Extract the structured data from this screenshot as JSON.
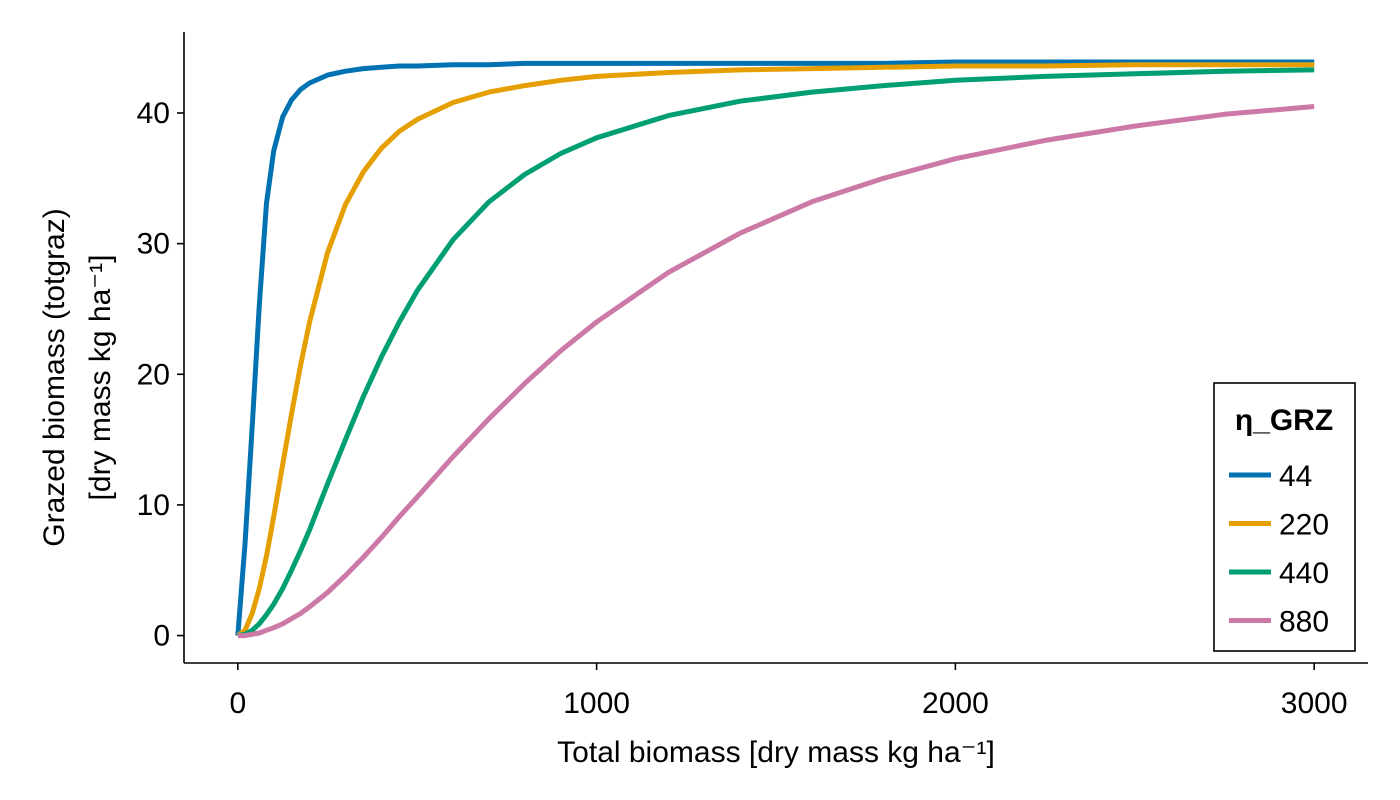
{
  "chart_data": {
    "type": "line",
    "xlabel": "Total biomass [dry mass kg ha⁻¹]",
    "ylabel_line1": "Grazed biomass (totgraz)",
    "ylabel_line2": "[dry mass kg ha⁻¹]",
    "xlim": [
      -150,
      3150
    ],
    "ylim": [
      -2.1,
      46.2
    ],
    "xticks": [
      0,
      1000,
      2000,
      3000
    ],
    "yticks": [
      0,
      10,
      20,
      30,
      40
    ],
    "xtick_labels": [
      "0",
      "1000",
      "2000",
      "3000"
    ],
    "ytick_labels": [
      "0",
      "10",
      "20",
      "30",
      "40"
    ],
    "grid": false,
    "legend": {
      "title": "η_GRZ",
      "placement": "bottom-right"
    },
    "x": [
      0,
      20,
      40,
      60,
      80,
      100,
      125,
      150,
      175,
      200,
      250,
      300,
      350,
      400,
      450,
      500,
      600,
      700,
      800,
      900,
      1000,
      1200,
      1400,
      1600,
      1800,
      2000,
      2250,
      2500,
      2750,
      3000
    ],
    "series": [
      {
        "name": "44",
        "color": "#0072b2",
        "values": [
          0.0,
          7.0,
          16.0,
          25.3,
          33.1,
          37.1,
          39.7,
          41.0,
          41.8,
          42.3,
          42.9,
          43.2,
          43.4,
          43.5,
          43.6,
          43.6,
          43.7,
          43.7,
          43.8,
          43.8,
          43.8,
          43.8,
          43.8,
          43.8,
          43.8,
          43.9,
          43.9,
          43.9,
          43.9,
          43.9
        ]
      },
      {
        "name": "220",
        "color": "#e69f00",
        "values": [
          0.0,
          0.4,
          1.7,
          3.6,
          6.1,
          9.1,
          13.1,
          17.0,
          20.7,
          24.0,
          29.3,
          33.0,
          35.5,
          37.3,
          38.6,
          39.5,
          40.8,
          41.6,
          42.1,
          42.5,
          42.8,
          43.1,
          43.3,
          43.4,
          43.5,
          43.6,
          43.6,
          43.7,
          43.7,
          43.7
        ]
      },
      {
        "name": "440",
        "color": "#009e73",
        "values": [
          0.0,
          0.1,
          0.4,
          0.9,
          1.6,
          2.4,
          3.6,
          5.0,
          6.5,
          8.1,
          11.6,
          15.0,
          18.3,
          21.3,
          24.0,
          26.4,
          30.3,
          33.2,
          35.3,
          36.9,
          38.1,
          39.8,
          40.9,
          41.6,
          42.1,
          42.5,
          42.8,
          43.0,
          43.2,
          43.3
        ]
      },
      {
        "name": "880",
        "color": "#cc79a7",
        "values": [
          0.0,
          0.0,
          0.1,
          0.2,
          0.4,
          0.6,
          0.9,
          1.3,
          1.7,
          2.2,
          3.3,
          4.6,
          6.0,
          7.5,
          9.1,
          10.6,
          13.7,
          16.6,
          19.3,
          21.8,
          24.0,
          27.8,
          30.8,
          33.2,
          35.0,
          36.5,
          37.9,
          39.0,
          39.9,
          40.5
        ]
      }
    ]
  }
}
